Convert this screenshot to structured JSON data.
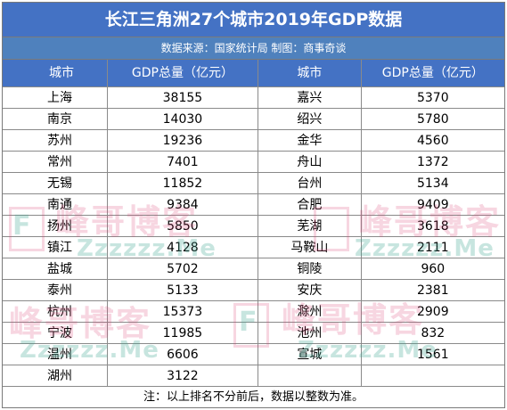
{
  "title": "长江三角洲27个城市2019年GDP数据",
  "source": "数据来源：国家统计局  制图：商事奇谈",
  "columns": [
    "城市",
    "GDP总量（亿元）",
    "城市",
    "GDP总量（亿元）"
  ],
  "rows": [
    [
      "上海",
      "38155",
      "嘉兴",
      "5370"
    ],
    [
      "南京",
      "14030",
      "绍兴",
      "5780"
    ],
    [
      "苏州",
      "19236",
      "金华",
      "4560"
    ],
    [
      "常州",
      "7401",
      "舟山",
      "1372"
    ],
    [
      "无锡",
      "11852",
      "台州",
      "5134"
    ],
    [
      "南通",
      "9384",
      "合肥",
      "9409"
    ],
    [
      "扬州",
      "5850",
      "芜湖",
      "3618"
    ],
    [
      "镇江",
      "4128",
      "马鞍山",
      "2111"
    ],
    [
      "盐城",
      "5702",
      "铜陵",
      "960"
    ],
    [
      "泰州",
      "5133",
      "安庆",
      "2381"
    ],
    [
      "杭州",
      "15373",
      "滁州",
      "2909"
    ],
    [
      "宁波",
      "11985",
      "池州",
      "832"
    ],
    [
      "温州",
      "6606",
      "宣城",
      "1561"
    ],
    [
      "湖州",
      "3122",
      "",
      ""
    ]
  ],
  "footer": "注：以上排名不分前后，数据以整数为准。",
  "watermark": {
    "cn": "峰哥博客",
    "en": "Zzzzzz.Me",
    "letter": "F"
  }
}
